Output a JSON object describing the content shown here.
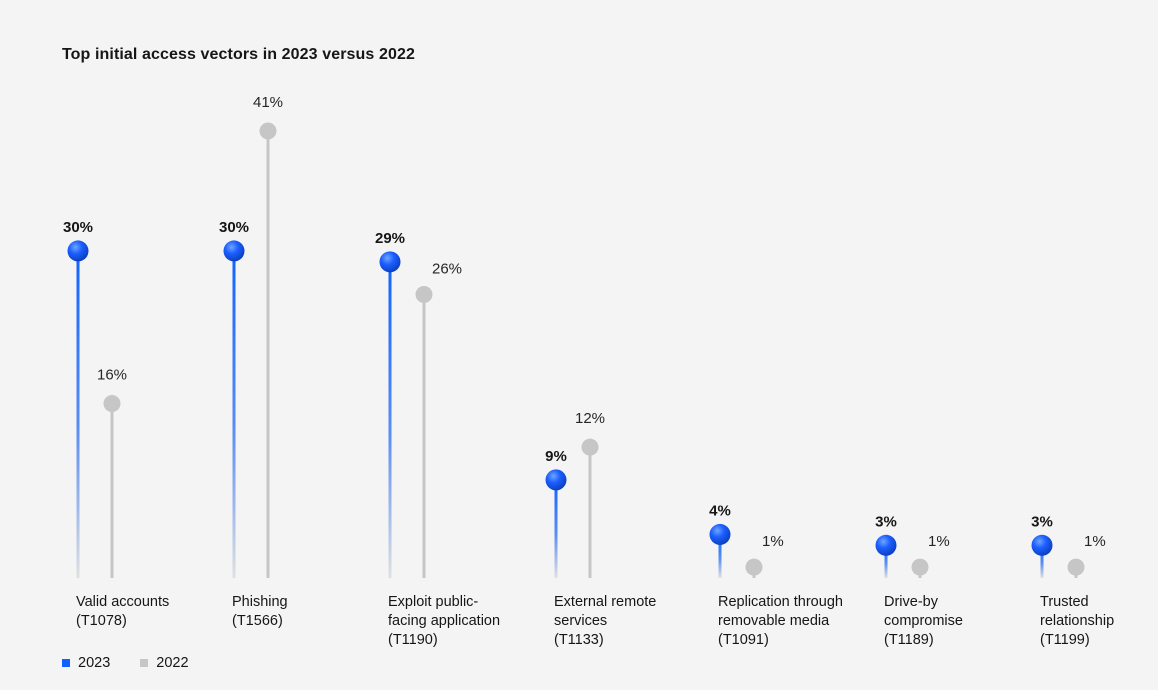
{
  "chart_data": {
    "type": "lollipop",
    "title": "Top initial access vectors in 2023 versus 2022",
    "categories": [
      "Valid accounts\n(T1078)",
      "Phishing\n(T1566)",
      "Exploit public-\nfacing application\n(T1190)",
      "External remote\nservices\n(T1133)",
      "Replication through\nremovable media\n(T1091)",
      "Drive-by\ncompromise\n(T1189)",
      "Trusted\nrelationship\n(T1199)"
    ],
    "series": [
      {
        "name": "2023",
        "values": [
          30,
          30,
          29,
          9,
          4,
          3,
          3
        ],
        "labels": [
          "30%",
          "30%",
          "29%",
          "9%",
          "4%",
          "3%",
          "3%"
        ],
        "color": "#0f62fe"
      },
      {
        "name": "2022",
        "values": [
          16,
          41,
          26,
          12,
          1,
          1,
          1
        ],
        "labels": [
          "16%",
          "41%",
          "26%",
          "12%",
          "1%",
          "1%",
          "1%"
        ],
        "color": "#c6c6c6"
      }
    ],
    "ylim": [
      0,
      41
    ],
    "grid": false,
    "legend_position": "bottom-left"
  },
  "colors": {
    "series_2023": "#0f62fe",
    "series_2022": "#c6c6c6"
  }
}
